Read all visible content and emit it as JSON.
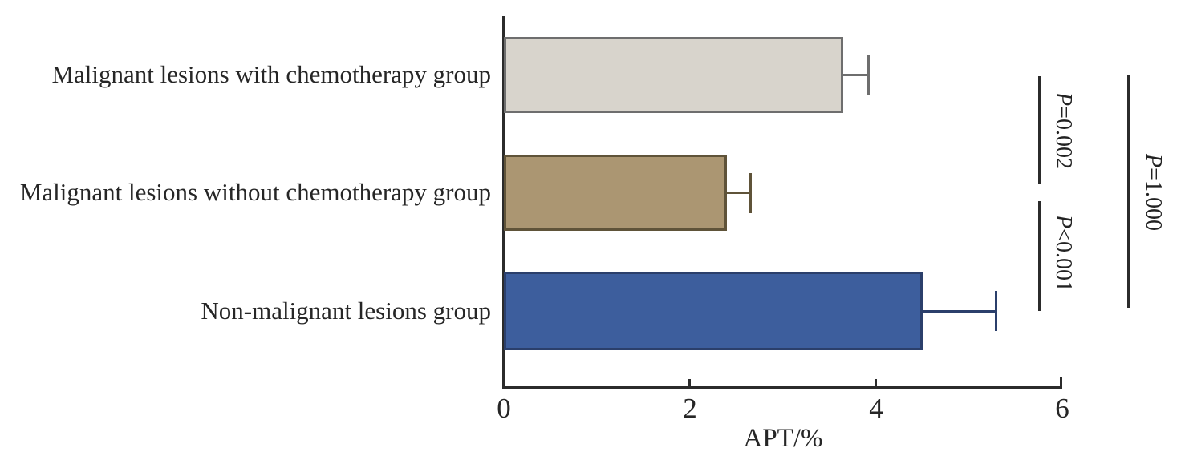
{
  "chart_data": {
    "type": "bar",
    "orientation": "horizontal",
    "title": "",
    "xlabel": "APT/%",
    "xlim": [
      0,
      6
    ],
    "x_ticks": [
      0,
      2,
      4,
      6
    ],
    "x_tick_labels": [
      "0",
      "2",
      "4",
      "6"
    ],
    "categories": [
      "Malignant lesions with chemotherapy group",
      "Malignant lesions without chemotherapy group",
      "Non-malignant lesions group"
    ],
    "values": [
      3.65,
      2.4,
      4.5
    ],
    "errors_upper": [
      0.28,
      0.26,
      0.8
    ],
    "bar_fill_colors": [
      "#d8d4cc",
      "#ab9672",
      "#3d5e9d"
    ],
    "bar_edge_colors": [
      "#6e6e6e",
      "#5f5339",
      "#2b3f6b"
    ],
    "axis_color": "#2b2b2b",
    "grid": false,
    "legend": "none",
    "annotations": [
      {
        "symbol": "P",
        "value": "=0.002",
        "between": [
          "Malignant lesions with chemotherapy group",
          "Malignant lesions without chemotherapy group"
        ]
      },
      {
        "symbol": "P",
        "value": "<0.001",
        "between": [
          "Malignant lesions without chemotherapy group",
          "Non-malignant lesions group"
        ]
      },
      {
        "symbol": "P",
        "value": "=1.000",
        "between": [
          "Malignant lesions with chemotherapy group",
          "Non-malignant lesions group"
        ]
      }
    ]
  }
}
